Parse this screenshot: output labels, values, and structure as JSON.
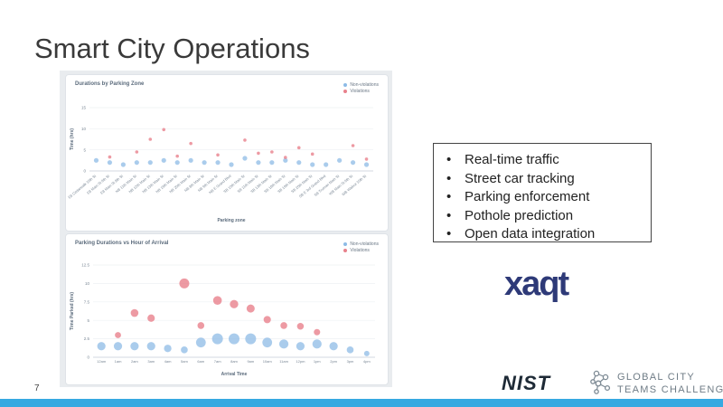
{
  "slide": {
    "title": "Smart City Operations",
    "page_number": "7"
  },
  "bullets": [
    "Real-time traffic",
    "Street car tracking",
    "Parking enforcement",
    "Pothole prediction",
    "Open data integration"
  ],
  "logos": {
    "xaqt": "xaqt",
    "nist": "NIST",
    "gctc_line1": "GLOBAL CITY",
    "gctc_line2": "TEAMS CHALLENGE"
  },
  "colors": {
    "non_violation": "#8dbbe6",
    "violation": "#e8818c",
    "accent": "#36a9e1",
    "xaqt_navy": "#2e3a78"
  },
  "chart_data": [
    {
      "type": "scatter",
      "title": "Durations by Parking Zone",
      "xlabel": "Parking zone",
      "ylabel": "Time (hrs)",
      "ylim": [
        0,
        15
      ],
      "yticks": [
        0,
        5,
        10,
        15
      ],
      "legend": [
        "Non-violations",
        "Violations"
      ],
      "categories": [
        "E8 Cedarwalk 10th St",
        "E8 Main St 9th St",
        "E8 Main St 8th St",
        "NB 11th Main St",
        "NB 12th Main St",
        "NB 13th Main St",
        "NB 19th Main St",
        "NB 20th Main St",
        "NB 8th Main St",
        "NB 9th Main St",
        "NB E Grand Blvd",
        "SB 10th Main St",
        "SB 11th Main St",
        "SB 13th Main St",
        "SB 18th Main St",
        "SB 19th Main St",
        "SB 20th Main St",
        "SB E 3rd Grand Blvd",
        "SB Truman Main St",
        "WB Main St 9th St",
        "WB Walnut 10th St"
      ],
      "series": [
        {
          "name": "Non-violations",
          "values": [
            2.5,
            2.0,
            1.5,
            2.0,
            2.0,
            2.5,
            2.0,
            2.5,
            2.0,
            2.0,
            1.5,
            3.0,
            2.0,
            2.0,
            2.5,
            2.0,
            1.5,
            1.5,
            2.5,
            2.0,
            1.5
          ]
        },
        {
          "name": "Violations",
          "values": [
            0,
            3.3,
            0,
            4.5,
            7.5,
            9.8,
            3.5,
            6.5,
            0,
            3.8,
            0,
            7.3,
            4.2,
            4.5,
            3.2,
            5.5,
            4.0,
            0,
            0,
            6.0,
            2.8
          ]
        }
      ]
    },
    {
      "type": "scatter",
      "title": "Parking Durations vs Hour of Arrival",
      "xlabel": "Arrival Time",
      "ylabel": "Time Parked (hrs)",
      "ylim": [
        0,
        12.5
      ],
      "yticks": [
        0,
        2.5,
        5,
        7.5,
        10,
        12.5
      ],
      "legend": [
        "Non-violations",
        "Violations"
      ],
      "categories": [
        "12am",
        "1am",
        "2am",
        "3am",
        "4am",
        "5am",
        "6am",
        "7am",
        "8am",
        "9am",
        "10am",
        "11am",
        "12pm",
        "1pm",
        "2pm",
        "3pm",
        "4pm"
      ],
      "series": [
        {
          "name": "Non-violations",
          "values": [
            1.5,
            1.5,
            1.5,
            1.5,
            1.2,
            1.0,
            2.0,
            2.5,
            2.5,
            2.5,
            2.0,
            1.8,
            1.5,
            1.8,
            1.5,
            1.0,
            0.5
          ]
        },
        {
          "name": "Violations",
          "values": [
            0,
            3.0,
            6.0,
            5.3,
            0,
            10.0,
            4.3,
            7.7,
            7.2,
            6.6,
            5.1,
            4.3,
            4.2,
            3.4,
            0,
            0,
            0
          ]
        }
      ]
    }
  ]
}
